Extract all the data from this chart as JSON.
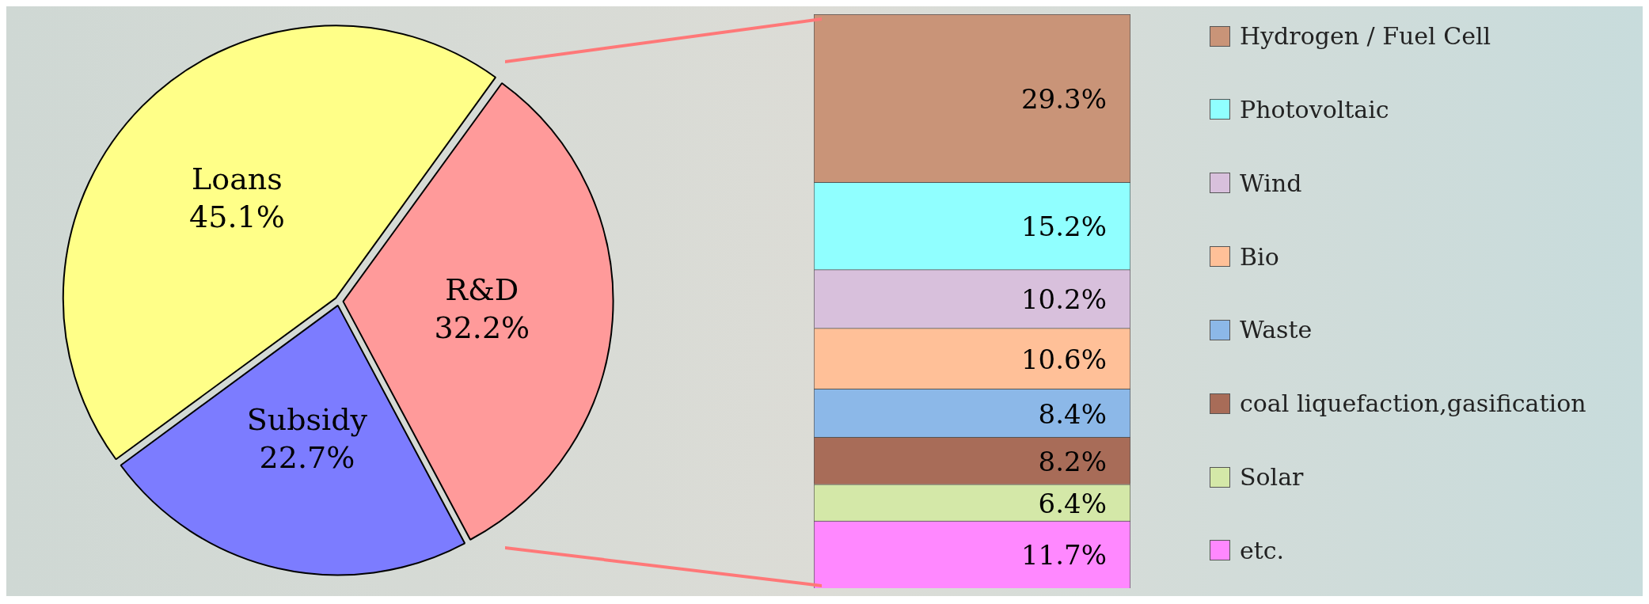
{
  "chart_data": [
    {
      "type": "pie",
      "categories": [
        "R&D",
        "Subsidy",
        "Loans"
      ],
      "values": [
        32.2,
        22.7,
        45.1
      ],
      "colors": [
        "#ff9a9a",
        "#7c7cff",
        "#ffff88"
      ],
      "value_labels": [
        "32.2%",
        "22.7%",
        "45.1%"
      ],
      "legend": false
    },
    {
      "type": "bar",
      "stacked": true,
      "categories": [
        null
      ],
      "legend": "right",
      "series": [
        {
          "name": "etc.",
          "color": "#ff88ff",
          "values": [
            11.7
          ],
          "value_labels": [
            "11.7%"
          ]
        },
        {
          "name": "Solar",
          "color": "#d4e8a8",
          "values": [
            6.4
          ],
          "value_labels": [
            "6.4%"
          ]
        },
        {
          "name": "coal liquefaction,gasification",
          "color": "#a86c58",
          "values": [
            8.2
          ],
          "value_labels": [
            "8.2%"
          ]
        },
        {
          "name": "Waste",
          "color": "#8cb8e8",
          "values": [
            8.4
          ],
          "value_labels": [
            "8.4%"
          ]
        },
        {
          "name": "Bio",
          "color": "#ffc098",
          "values": [
            10.6
          ],
          "value_labels": [
            "10.6%"
          ]
        },
        {
          "name": "Wind",
          "color": "#d8c0dc",
          "values": [
            10.2
          ],
          "value_labels": [
            "10.2%"
          ]
        },
        {
          "name": "Photovoltaic",
          "color": "#90ffff",
          "values": [
            15.2
          ],
          "value_labels": [
            "15.2%"
          ]
        },
        {
          "name": "Hydrogen / Fuel Cell",
          "color": "#c99478",
          "values": [
            29.3
          ],
          "value_labels": [
            "29.3%"
          ]
        }
      ]
    }
  ]
}
